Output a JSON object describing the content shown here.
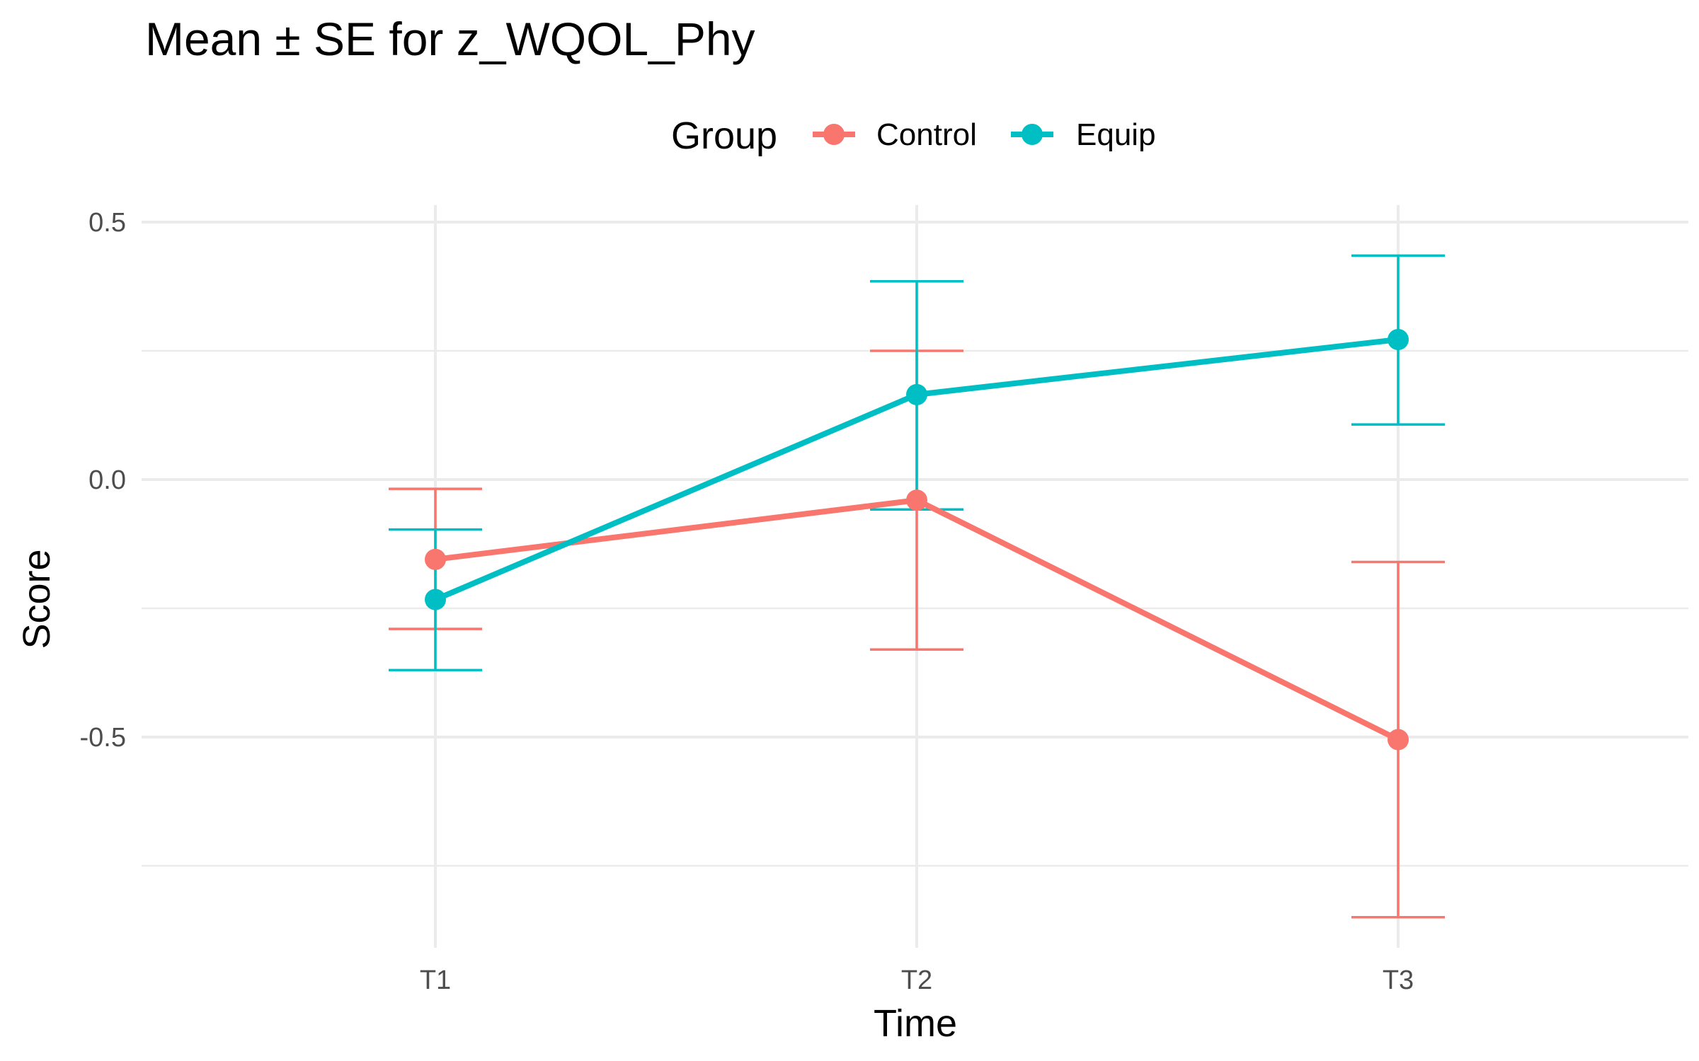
{
  "chart_data": {
    "type": "line",
    "title": "Mean ± SE for z_WQOL_Phy",
    "xlabel": "Time",
    "ylabel": "Score",
    "categories": [
      "T1",
      "T2",
      "T3"
    ],
    "ylim": [
      -0.85,
      0.52
    ],
    "y_ticks": [
      0.5,
      0.0,
      -0.5
    ],
    "y_tick_labels": [
      "0.5",
      "0.0",
      "-0.5"
    ],
    "y_minor_ticks": [
      0.25,
      -0.25,
      -0.75
    ],
    "legend": {
      "title": "Group",
      "position": "top"
    },
    "grid": true,
    "series": [
      {
        "name": "Control",
        "color": "#F8766D",
        "values": [
          -0.155,
          -0.04,
          -0.505
        ],
        "upper": [
          -0.018,
          0.25,
          -0.16
        ],
        "lower": [
          -0.29,
          -0.33,
          -0.85
        ]
      },
      {
        "name": "Equip",
        "color": "#00BFC4",
        "values": [
          -0.233,
          0.165,
          0.272
        ],
        "upper": [
          -0.097,
          0.385,
          0.435
        ],
        "lower": [
          -0.37,
          -0.058,
          0.107
        ]
      }
    ]
  }
}
